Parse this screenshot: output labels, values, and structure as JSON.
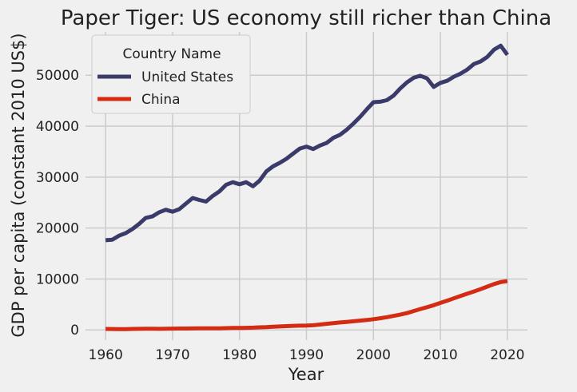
{
  "chart_data": {
    "type": "line",
    "title": "Paper Tiger: US economy still richer than China",
    "xlabel": "Year",
    "ylabel": "GDP per capita (constant 2010 US$)",
    "xlim": [
      1957,
      2023
    ],
    "ylim": [
      -2000,
      58500
    ],
    "x_ticks": [
      "1960",
      "1970",
      "1980",
      "1990",
      "2000",
      "2010",
      "2020"
    ],
    "y_ticks": [
      "0",
      "10000",
      "20000",
      "30000",
      "40000",
      "50000"
    ],
    "grid": true,
    "legend": {
      "title": "Country Name",
      "placement": "top-left"
    },
    "x": [
      1960,
      1961,
      1962,
      1963,
      1964,
      1965,
      1966,
      1967,
      1968,
      1969,
      1970,
      1971,
      1972,
      1973,
      1974,
      1975,
      1976,
      1977,
      1978,
      1979,
      1980,
      1981,
      1982,
      1983,
      1984,
      1985,
      1986,
      1987,
      1988,
      1989,
      1990,
      1991,
      1992,
      1993,
      1994,
      1995,
      1996,
      1997,
      1998,
      1999,
      2000,
      2001,
      2002,
      2003,
      2004,
      2005,
      2006,
      2007,
      2008,
      2009,
      2010,
      2011,
      2012,
      2013,
      2014,
      2015,
      2016,
      2017,
      2018,
      2019,
      2020
    ],
    "series": [
      {
        "name": "United States",
        "color": "#3b3b6b",
        "values": [
          17600,
          17700,
          18500,
          19000,
          19800,
          20800,
          22000,
          22300,
          23100,
          23600,
          23200,
          23700,
          24800,
          25900,
          25500,
          25200,
          26300,
          27200,
          28500,
          29000,
          28600,
          29000,
          28200,
          29300,
          31100,
          32100,
          32800,
          33600,
          34600,
          35600,
          36000,
          35500,
          36200,
          36700,
          37700,
          38300,
          39300,
          40500,
          41800,
          43300,
          44700,
          44800,
          45100,
          46000,
          47400,
          48600,
          49500,
          49900,
          49400,
          47700,
          48500,
          48900,
          49700,
          50300,
          51100,
          52200,
          52700,
          53600,
          55000,
          55800,
          54000
        ]
      },
      {
        "name": "China",
        "color": "#d42b13",
        "values": [
          200,
          180,
          160,
          170,
          190,
          210,
          230,
          220,
          210,
          230,
          260,
          270,
          280,
          290,
          300,
          300,
          310,
          320,
          350,
          380,
          400,
          420,
          450,
          500,
          560,
          630,
          680,
          750,
          810,
          840,
          860,
          920,
          1050,
          1190,
          1330,
          1460,
          1580,
          1700,
          1820,
          1950,
          2100,
          2300,
          2500,
          2750,
          3000,
          3300,
          3700,
          4100,
          4450,
          4850,
          5300,
          5750,
          6200,
          6650,
          7100,
          7550,
          8000,
          8500,
          9000,
          9400,
          9600
        ]
      }
    ]
  }
}
